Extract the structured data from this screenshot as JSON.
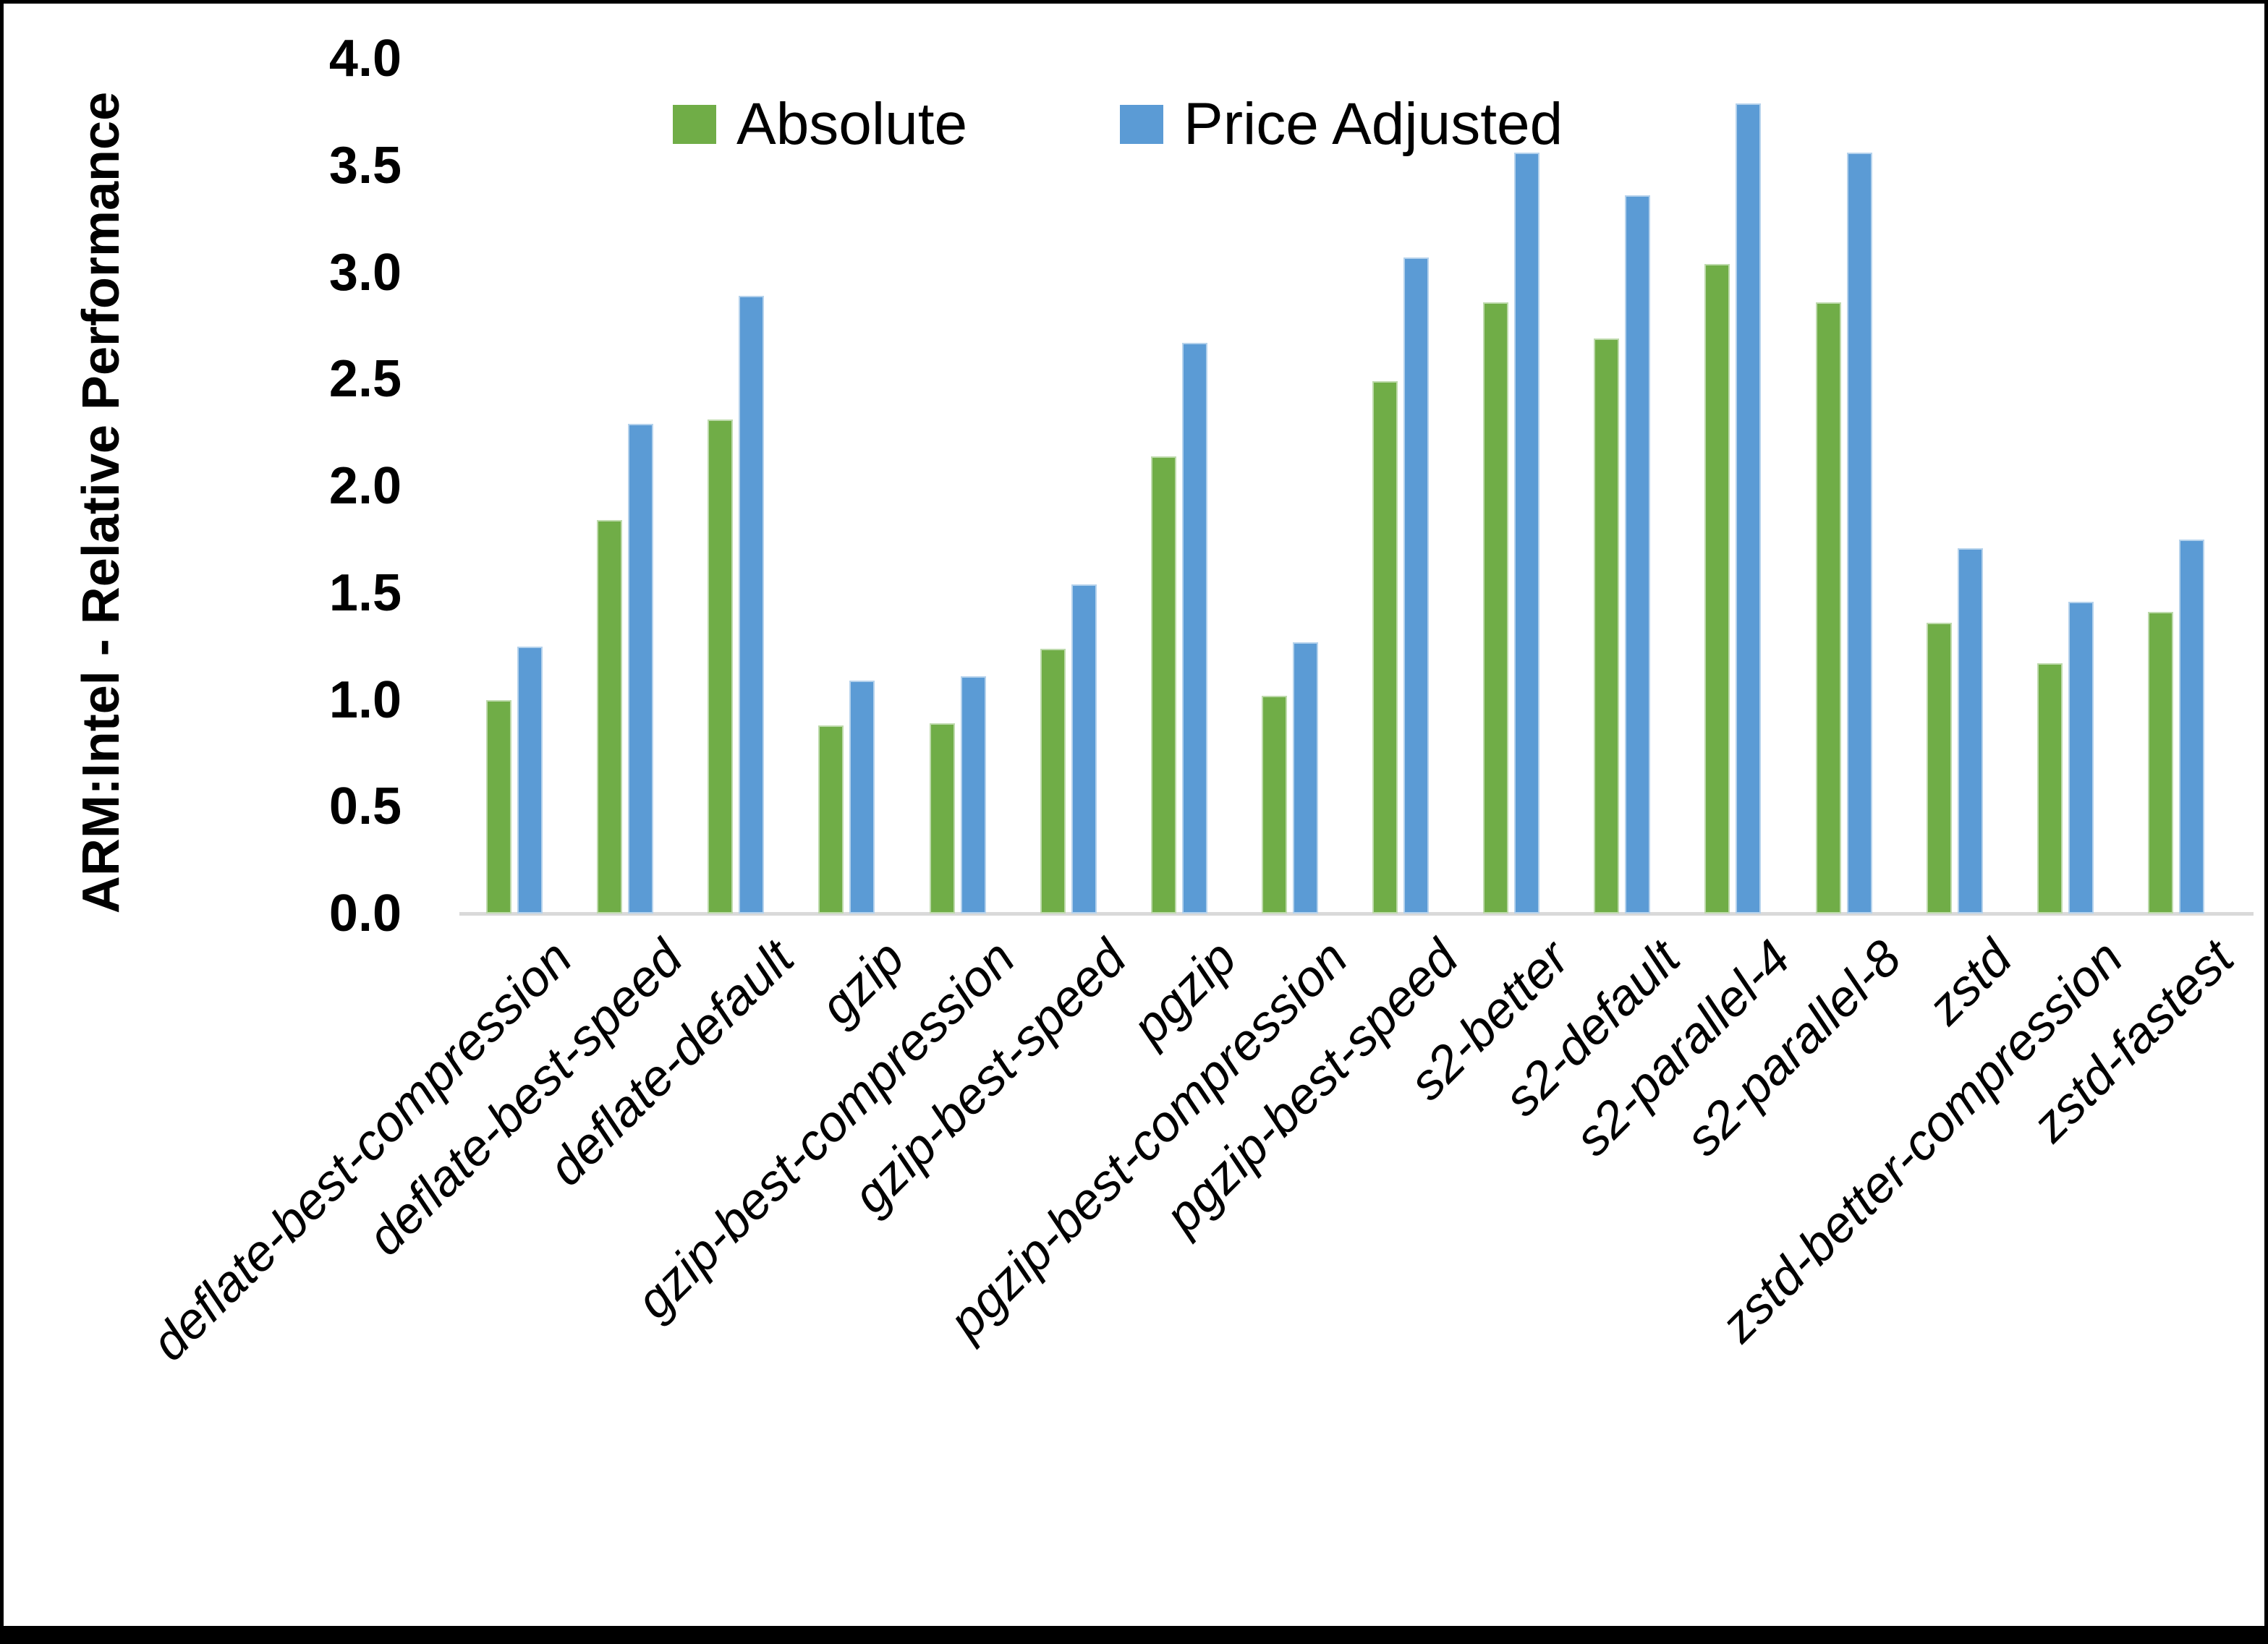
{
  "window": {
    "background": "#ffffff",
    "frame_border_color": "#000000",
    "baseline_color": "#d9d9d9"
  },
  "chart_data": {
    "type": "bar",
    "title": "",
    "xlabel": "",
    "ylabel": "ARM:Intel - Relative Performance",
    "ylim": [
      0.0,
      4.0
    ],
    "ytick_step": 0.5,
    "y_ticks": [
      "0.0",
      "0.5",
      "1.0",
      "1.5",
      "2.0",
      "2.5",
      "3.0",
      "3.5",
      "4.0"
    ],
    "grid": false,
    "legend_position": "top",
    "categories": [
      "deflate-best-compression",
      "deflate-best-speed",
      "deflate-default",
      "gzip",
      "gzip-best-compression",
      "gzip-best-speed",
      "pgzip",
      "pgzip-best-compression",
      "pgzip-best-speed",
      "s2-better",
      "s2-default",
      "s2-parallel-4",
      "s2-parallel-8",
      "zstd",
      "zstd-better-compression",
      "zstd-fastest"
    ],
    "series": [
      {
        "name": "Absolute",
        "color": "#70AD47",
        "values": [
          1.0,
          1.84,
          2.31,
          0.88,
          0.89,
          1.24,
          2.14,
          1.02,
          2.49,
          2.86,
          2.69,
          3.04,
          2.86,
          1.36,
          1.17,
          1.41
        ]
      },
      {
        "name": "Price Adjusted",
        "color": "#5B9BD5",
        "values": [
          1.25,
          2.29,
          2.89,
          1.09,
          1.11,
          1.54,
          2.67,
          1.27,
          3.07,
          3.56,
          3.36,
          3.79,
          3.56,
          1.71,
          1.46,
          1.75
        ]
      }
    ]
  }
}
